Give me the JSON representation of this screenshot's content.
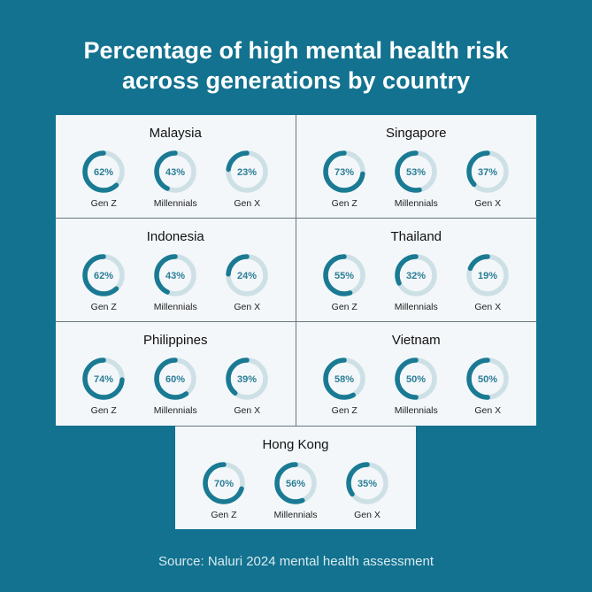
{
  "title_line1": "Percentage of high mental health risk",
  "title_line2": "across generations by country",
  "source": "Source: Naluri 2024 mental health assessment",
  "colors": {
    "background": "#12728f",
    "ring": "#1a7a93",
    "track": "#cde0e5"
  },
  "chart_data": {
    "type": "pie",
    "subtype": "donut-grid",
    "title": "Percentage of high mental health risk across generations by country",
    "generations": [
      "Gen Z",
      "Millennials",
      "Gen X"
    ],
    "countries": [
      {
        "name": "Malaysia",
        "values": [
          62,
          43,
          23
        ]
      },
      {
        "name": "Singapore",
        "values": [
          73,
          53,
          37
        ]
      },
      {
        "name": "Indonesia",
        "values": [
          62,
          43,
          24
        ]
      },
      {
        "name": "Thailand",
        "values": [
          55,
          32,
          19
        ]
      },
      {
        "name": "Philippines",
        "values": [
          74,
          60,
          39
        ]
      },
      {
        "name": "Vietnam",
        "values": [
          58,
          50,
          50
        ]
      },
      {
        "name": "Hong Kong",
        "values": [
          70,
          56,
          35
        ]
      }
    ],
    "unit": "%"
  }
}
